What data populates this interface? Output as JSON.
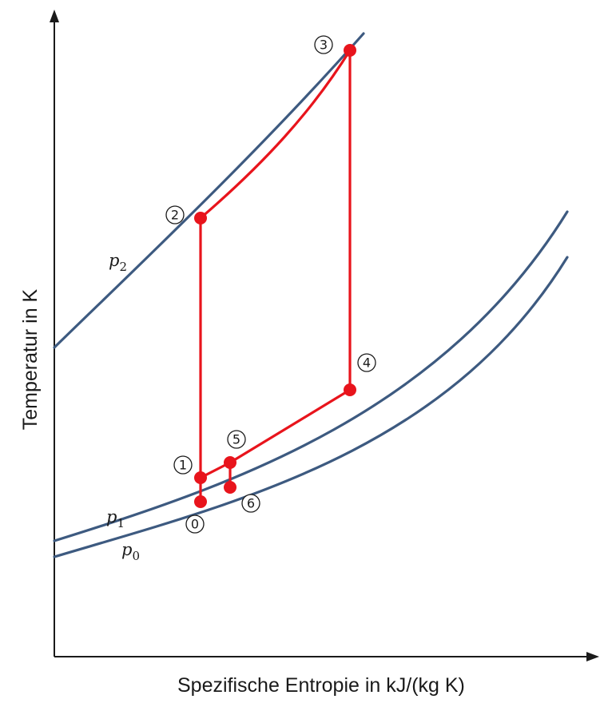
{
  "axes": {
    "x_label": "Spezifische Entropie in kJ/(kg K)",
    "y_label": "Temperatur in K"
  },
  "isobars": [
    {
      "id": "p2",
      "symbol": "p",
      "subscript": "2"
    },
    {
      "id": "p1",
      "symbol": "p",
      "subscript": "1"
    },
    {
      "id": "p0",
      "symbol": "p",
      "subscript": "0"
    }
  ],
  "states": [
    {
      "id": "0",
      "label": "0"
    },
    {
      "id": "1",
      "label": "1"
    },
    {
      "id": "2",
      "label": "2"
    },
    {
      "id": "3",
      "label": "3"
    },
    {
      "id": "4",
      "label": "4"
    },
    {
      "id": "5",
      "label": "5"
    },
    {
      "id": "6",
      "label": "6"
    }
  ],
  "colors": {
    "isobar": "#3d5a80",
    "cycle": "#e8141c",
    "axis": "#1a1a1a"
  }
}
